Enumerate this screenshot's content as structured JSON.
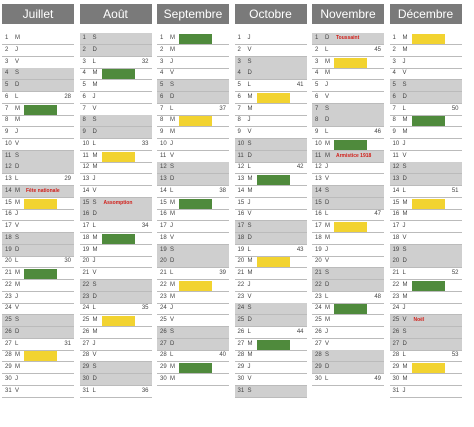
{
  "colors": {
    "green": "#4f8a3c",
    "yellow": "#f2d330"
  },
  "months": [
    {
      "name": "Juillet",
      "days": [
        [
          1,
          "M"
        ],
        [
          2,
          "J"
        ],
        [
          3,
          "V"
        ],
        [
          4,
          "S"
        ],
        [
          5,
          "D"
        ],
        [
          6,
          "L",
          28
        ],
        [
          7,
          "M"
        ],
        [
          8,
          "M"
        ],
        [
          9,
          "J"
        ],
        [
          10,
          "V"
        ],
        [
          11,
          "S"
        ],
        [
          12,
          "D"
        ],
        [
          13,
          "L",
          29
        ],
        [
          14,
          "M"
        ],
        [
          15,
          "M"
        ],
        [
          16,
          "J"
        ],
        [
          17,
          "V"
        ],
        [
          18,
          "S"
        ],
        [
          19,
          "D"
        ],
        [
          20,
          "L",
          30
        ],
        [
          21,
          "M"
        ],
        [
          22,
          "M"
        ],
        [
          23,
          "J"
        ],
        [
          24,
          "V"
        ],
        [
          25,
          "S"
        ],
        [
          26,
          "D"
        ],
        [
          27,
          "L",
          31
        ],
        [
          28,
          "M"
        ],
        [
          29,
          "M"
        ],
        [
          30,
          "J"
        ],
        [
          31,
          "V"
        ]
      ],
      "shaded": [
        4,
        5,
        11,
        12,
        14,
        18,
        19,
        25,
        26
      ],
      "green": [
        7,
        21
      ],
      "yellow": [
        15,
        28
      ],
      "holidays": [
        {
          "day": 14,
          "label": "Fête nationale"
        }
      ]
    },
    {
      "name": "Août",
      "days": [
        [
          1,
          "S"
        ],
        [
          2,
          "D"
        ],
        [
          3,
          "L",
          32
        ],
        [
          4,
          "M"
        ],
        [
          5,
          "M"
        ],
        [
          6,
          "J"
        ],
        [
          7,
          "V"
        ],
        [
          8,
          "S"
        ],
        [
          9,
          "D"
        ],
        [
          10,
          "L",
          33
        ],
        [
          11,
          "M"
        ],
        [
          12,
          "M"
        ],
        [
          13,
          "J"
        ],
        [
          14,
          "V"
        ],
        [
          15,
          "S"
        ],
        [
          16,
          "D"
        ],
        [
          17,
          "L",
          34
        ],
        [
          18,
          "M"
        ],
        [
          19,
          "M"
        ],
        [
          20,
          "J"
        ],
        [
          21,
          "V"
        ],
        [
          22,
          "S"
        ],
        [
          23,
          "D"
        ],
        [
          24,
          "L",
          35
        ],
        [
          25,
          "M"
        ],
        [
          26,
          "M"
        ],
        [
          27,
          "J"
        ],
        [
          28,
          "V"
        ],
        [
          29,
          "S"
        ],
        [
          30,
          "D"
        ],
        [
          31,
          "L",
          36
        ]
      ],
      "shaded": [
        1,
        2,
        8,
        9,
        15,
        16,
        22,
        23,
        29,
        30
      ],
      "green": [
        4,
        18
      ],
      "yellow": [
        11,
        25
      ],
      "holidays": [
        {
          "day": 15,
          "label": "Assomption"
        }
      ]
    },
    {
      "name": "Septembre",
      "days": [
        [
          1,
          "M"
        ],
        [
          2,
          "M"
        ],
        [
          3,
          "J"
        ],
        [
          4,
          "V"
        ],
        [
          5,
          "S"
        ],
        [
          6,
          "D"
        ],
        [
          7,
          "L",
          37
        ],
        [
          8,
          "M"
        ],
        [
          9,
          "M"
        ],
        [
          10,
          "J"
        ],
        [
          11,
          "V"
        ],
        [
          12,
          "S"
        ],
        [
          13,
          "D"
        ],
        [
          14,
          "L",
          38
        ],
        [
          15,
          "M"
        ],
        [
          16,
          "M"
        ],
        [
          17,
          "J"
        ],
        [
          18,
          "V"
        ],
        [
          19,
          "S"
        ],
        [
          20,
          "D"
        ],
        [
          21,
          "L",
          39
        ],
        [
          22,
          "M"
        ],
        [
          23,
          "M"
        ],
        [
          24,
          "J"
        ],
        [
          25,
          "V"
        ],
        [
          26,
          "S"
        ],
        [
          27,
          "D"
        ],
        [
          28,
          "L",
          40
        ],
        [
          29,
          "M"
        ],
        [
          30,
          "M"
        ]
      ],
      "shaded": [
        5,
        6,
        12,
        13,
        19,
        20,
        26,
        27
      ],
      "green": [
        1,
        15,
        29
      ],
      "yellow": [
        8,
        22
      ],
      "holidays": []
    },
    {
      "name": "Octobre",
      "days": [
        [
          1,
          "J"
        ],
        [
          2,
          "V"
        ],
        [
          3,
          "S"
        ],
        [
          4,
          "D"
        ],
        [
          5,
          "L",
          41
        ],
        [
          6,
          "M"
        ],
        [
          7,
          "M"
        ],
        [
          8,
          "J"
        ],
        [
          9,
          "V"
        ],
        [
          10,
          "S"
        ],
        [
          11,
          "D"
        ],
        [
          12,
          "L",
          42
        ],
        [
          13,
          "M"
        ],
        [
          14,
          "M"
        ],
        [
          15,
          "J"
        ],
        [
          16,
          "V"
        ],
        [
          17,
          "S"
        ],
        [
          18,
          "D"
        ],
        [
          19,
          "L",
          43
        ],
        [
          20,
          "M"
        ],
        [
          21,
          "M"
        ],
        [
          22,
          "J"
        ],
        [
          23,
          "V"
        ],
        [
          24,
          "S"
        ],
        [
          25,
          "D"
        ],
        [
          26,
          "L",
          44
        ],
        [
          27,
          "M"
        ],
        [
          28,
          "M"
        ],
        [
          29,
          "J"
        ],
        [
          30,
          "V"
        ],
        [
          31,
          "S"
        ]
      ],
      "shaded": [
        3,
        4,
        10,
        11,
        17,
        18,
        24,
        25,
        31
      ],
      "green": [
        13,
        27
      ],
      "yellow": [
        6,
        20
      ],
      "holidays": []
    },
    {
      "name": "Novembre",
      "days": [
        [
          1,
          "D"
        ],
        [
          2,
          "L",
          45
        ],
        [
          3,
          "M"
        ],
        [
          4,
          "M"
        ],
        [
          5,
          "J"
        ],
        [
          6,
          "V"
        ],
        [
          7,
          "S"
        ],
        [
          8,
          "D"
        ],
        [
          9,
          "L",
          46
        ],
        [
          10,
          "M"
        ],
        [
          11,
          "M"
        ],
        [
          12,
          "J"
        ],
        [
          13,
          "V"
        ],
        [
          14,
          "S"
        ],
        [
          15,
          "D"
        ],
        [
          16,
          "L",
          47
        ],
        [
          17,
          "M"
        ],
        [
          18,
          "M"
        ],
        [
          19,
          "J"
        ],
        [
          20,
          "V"
        ],
        [
          21,
          "S"
        ],
        [
          22,
          "D"
        ],
        [
          23,
          "L",
          48
        ],
        [
          24,
          "M"
        ],
        [
          25,
          "M"
        ],
        [
          26,
          "J"
        ],
        [
          27,
          "V"
        ],
        [
          28,
          "S"
        ],
        [
          29,
          "D"
        ],
        [
          30,
          "L",
          49
        ]
      ],
      "shaded": [
        1,
        7,
        8,
        11,
        14,
        15,
        21,
        22,
        28,
        29
      ],
      "green": [
        10,
        24
      ],
      "yellow": [
        3,
        17
      ],
      "holidays": [
        {
          "day": 1,
          "label": "Toussaint"
        },
        {
          "day": 11,
          "label": "Armistice 1918"
        }
      ]
    },
    {
      "name": "Décembre",
      "days": [
        [
          1,
          "M"
        ],
        [
          2,
          "M"
        ],
        [
          3,
          "J"
        ],
        [
          4,
          "V"
        ],
        [
          5,
          "S"
        ],
        [
          6,
          "D"
        ],
        [
          7,
          "L",
          50
        ],
        [
          8,
          "M"
        ],
        [
          9,
          "M"
        ],
        [
          10,
          "J"
        ],
        [
          11,
          "V"
        ],
        [
          12,
          "S"
        ],
        [
          13,
          "D"
        ],
        [
          14,
          "L",
          51
        ],
        [
          15,
          "M"
        ],
        [
          16,
          "M"
        ],
        [
          17,
          "J"
        ],
        [
          18,
          "V"
        ],
        [
          19,
          "S"
        ],
        [
          20,
          "D"
        ],
        [
          21,
          "L",
          52
        ],
        [
          22,
          "M"
        ],
        [
          23,
          "M"
        ],
        [
          24,
          "J"
        ],
        [
          25,
          "V"
        ],
        [
          26,
          "S"
        ],
        [
          27,
          "D"
        ],
        [
          28,
          "L",
          53
        ],
        [
          29,
          "M"
        ],
        [
          30,
          "M"
        ],
        [
          31,
          "J"
        ]
      ],
      "shaded": [
        5,
        6,
        12,
        13,
        19,
        20,
        25,
        26,
        27
      ],
      "green": [
        8,
        22
      ],
      "yellow": [
        1,
        15,
        29
      ],
      "holidays": [
        {
          "day": 25,
          "label": "Noël"
        }
      ]
    }
  ]
}
